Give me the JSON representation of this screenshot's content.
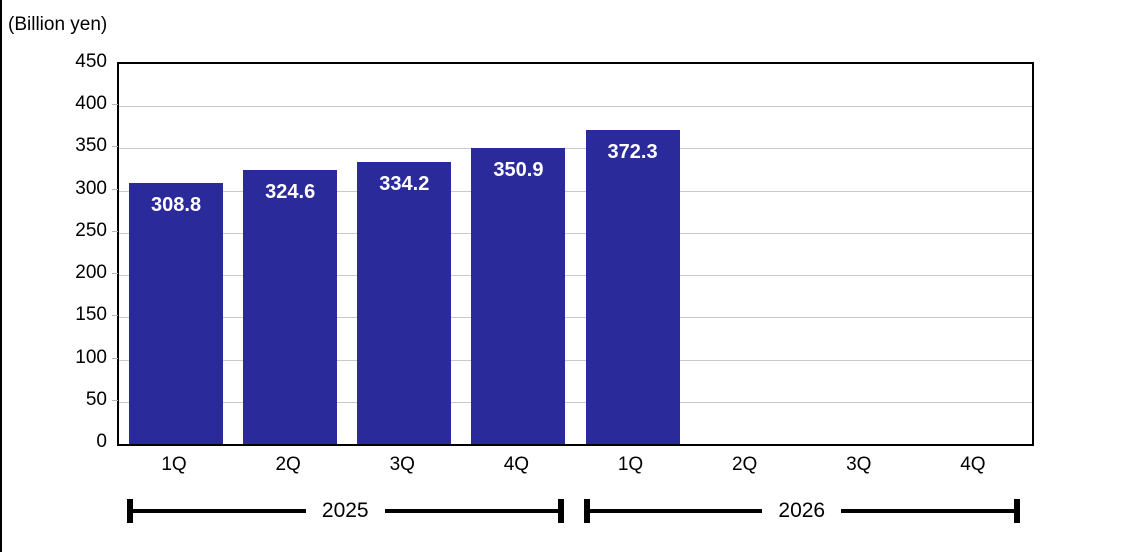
{
  "chart_data": {
    "type": "bar",
    "unit_label": "(Billion yen)",
    "categories": [
      "1Q",
      "2Q",
      "3Q",
      "4Q",
      "1Q",
      "2Q",
      "3Q",
      "4Q"
    ],
    "values": [
      308.8,
      324.6,
      334.2,
      350.9,
      372.3,
      null,
      null,
      null
    ],
    "value_labels": [
      "308.8",
      "324.6",
      "334.2",
      "350.9",
      "372.3",
      "",
      "",
      ""
    ],
    "year_groups": [
      {
        "label": "2025",
        "start_slot": 0,
        "end_slot": 3
      },
      {
        "label": "2026",
        "start_slot": 4,
        "end_slot": 7
      }
    ],
    "ylim": [
      0,
      450
    ],
    "ytick_step": 50,
    "yticks": [
      "450",
      "400",
      "350",
      "300",
      "250",
      "200",
      "150",
      "100",
      "50",
      "0"
    ],
    "grid": true,
    "legend": "none",
    "bar_color": "#2b2a9b",
    "bar_label_color": "#ffffff",
    "grid_color": "#c9c9c9",
    "axis_color": "#000000"
  }
}
